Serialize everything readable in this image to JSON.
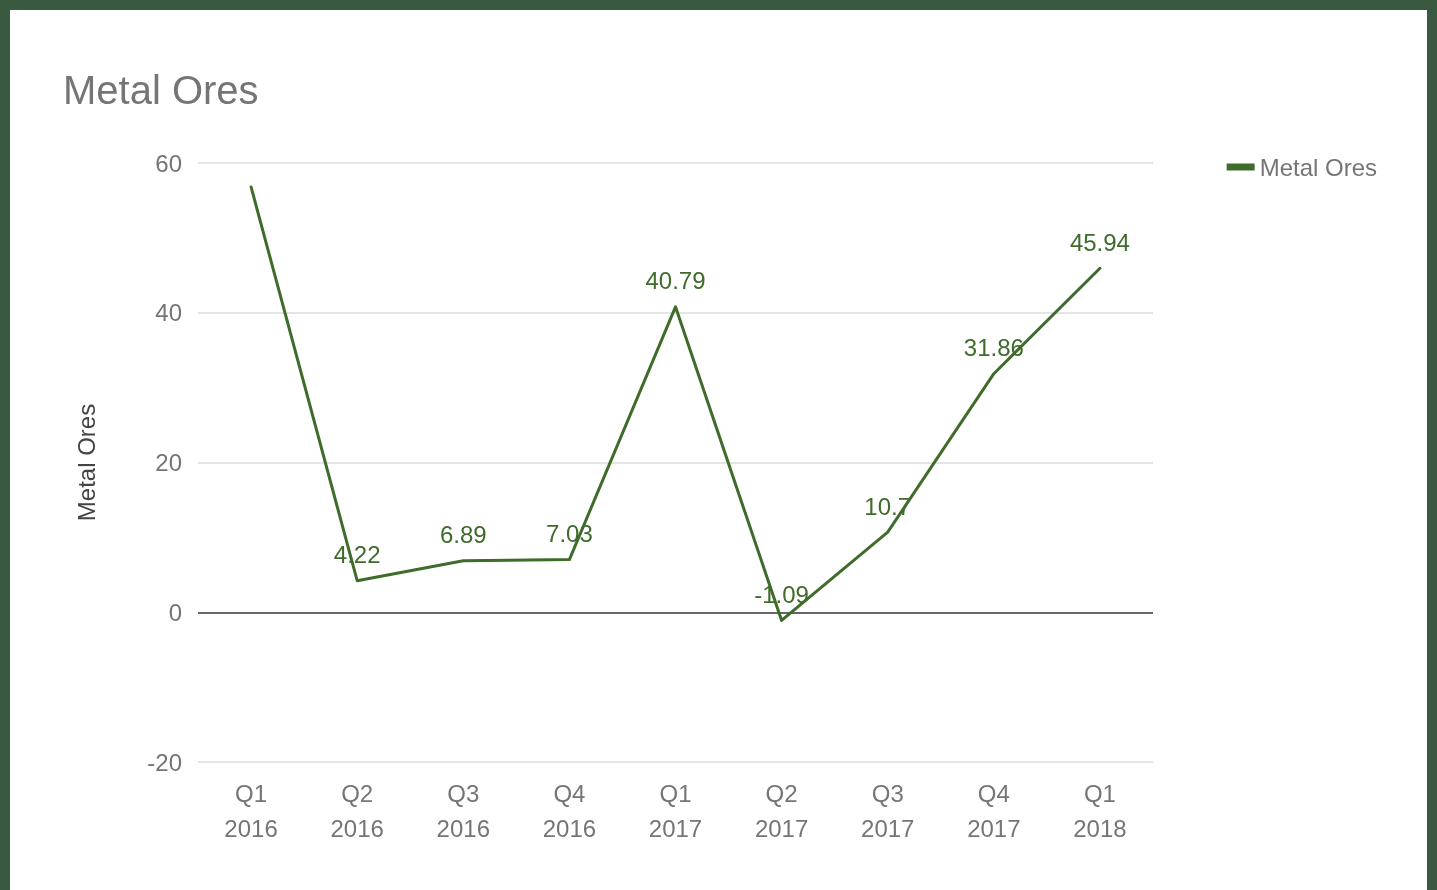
{
  "chart_data": {
    "type": "line",
    "title": "Metal Ores",
    "ylabel": "Metal Ores",
    "categories": [
      "Q1\n2016",
      "Q2\n2016",
      "Q3\n2016",
      "Q4\n2016",
      "Q1\n2017",
      "Q2\n2017",
      "Q3\n2017",
      "Q4\n2017",
      "Q1\n2018"
    ],
    "series": [
      {
        "name": "Metal Ores",
        "color": "#3f6b2b",
        "values": [
          56.8,
          4.22,
          6.89,
          7.03,
          40.79,
          -1.09,
          10.7,
          31.86,
          45.94
        ],
        "value_labels": [
          null,
          "4.22",
          "6.89",
          "7.03",
          "40.79",
          "-1.09",
          "10.7",
          "31.86",
          "45.94"
        ]
      }
    ],
    "ylim": [
      -20,
      60
    ],
    "yticks": [
      -20,
      0,
      20,
      40,
      60
    ],
    "grid": "y",
    "legend": "top right",
    "marker": "none",
    "line_style": "solid"
  }
}
